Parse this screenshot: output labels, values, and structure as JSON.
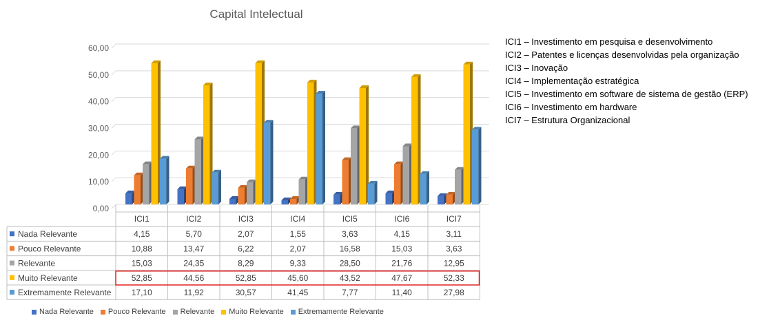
{
  "chart_data": {
    "type": "bar",
    "title": "Capital Intelectual",
    "categories": [
      "ICI1",
      "ICI2",
      "ICI3",
      "ICI4",
      "ICI5",
      "ICI6",
      "ICI7"
    ],
    "series": [
      {
        "name": "Nada Relevante",
        "color": "#4472C4",
        "values": [
          4.15,
          5.7,
          2.07,
          1.55,
          3.63,
          4.15,
          3.11
        ]
      },
      {
        "name": "Pouco Relevante",
        "color": "#ED7D31",
        "values": [
          10.88,
          13.47,
          6.22,
          2.07,
          16.58,
          15.03,
          3.63
        ]
      },
      {
        "name": "Relevante",
        "color": "#A5A5A5",
        "values": [
          15.03,
          24.35,
          8.29,
          9.33,
          28.5,
          21.76,
          12.95
        ]
      },
      {
        "name": "Muito Relevante",
        "color": "#FFC000",
        "values": [
          52.85,
          44.56,
          52.85,
          45.6,
          43.52,
          47.67,
          52.33
        ]
      },
      {
        "name": "Extremamente Relevante",
        "color": "#5B9BD5",
        "values": [
          17.1,
          11.92,
          30.57,
          41.45,
          7.77,
          11.4,
          27.98
        ]
      }
    ],
    "display_values": [
      [
        "4,15",
        "5,70",
        "2,07",
        "1,55",
        "3,63",
        "4,15",
        "3,11"
      ],
      [
        "10,88",
        "13,47",
        "6,22",
        "2,07",
        "16,58",
        "15,03",
        "3,63"
      ],
      [
        "15,03",
        "24,35",
        "8,29",
        "9,33",
        "28,50",
        "21,76",
        "12,95"
      ],
      [
        "52,85",
        "44,56",
        "52,85",
        "45,60",
        "43,52",
        "47,67",
        "52,33"
      ],
      [
        "17,10",
        "11,92",
        "30,57",
        "41,45",
        "7,77",
        "11,40",
        "27,98"
      ]
    ],
    "y_ticks": [
      "0,00",
      "10,00",
      "20,00",
      "30,00",
      "40,00",
      "50,00",
      "60,00"
    ],
    "ylim": [
      0,
      60
    ],
    "grid": true,
    "legend": "bottom",
    "data_table": true,
    "highlighted_row": "Muito Relevante",
    "highlight_color": "#E02020"
  },
  "notes": [
    "ICI1 – Investimento em pesquisa e desenvolvimento",
    "ICI2 – Patentes e licenças desenvolvidas pela organização",
    "ICI3 – Inovação",
    "ICI4 – Implementação estratégica",
    "ICI5 – Investimento em software de sistema de gestão (ERP)",
    "ICI6 – Investimento em hardware",
    "ICI7 – Estrutura Organizacional"
  ]
}
